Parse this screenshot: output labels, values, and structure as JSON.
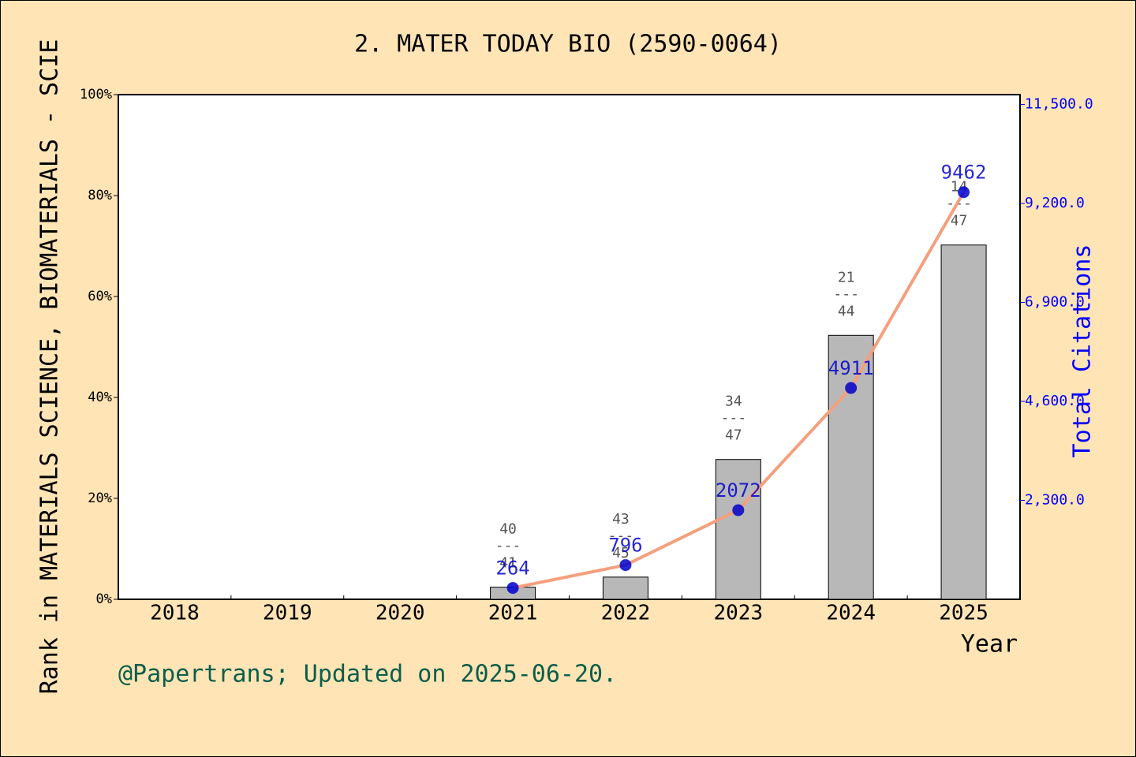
{
  "chart_data": {
    "type": "bar_line",
    "title": "2. MATER TODAY BIO (2590-0064)",
    "xlabel": "Year",
    "ylabel": "Rank in MATERIALS SCIENCE, BIOMATERIALS - SCIE",
    "y2label": "Total Citations",
    "footer": "@Papertrans; Updated on 2025-06-20.",
    "categories": [
      "2018",
      "2019",
      "2020",
      "2021",
      "2022",
      "2023",
      "2024",
      "2025"
    ],
    "series": [
      {
        "type": "bar",
        "color": "#b8b8b8",
        "values": [
          null,
          null,
          null,
          2.4,
          4.4,
          27.7,
          52.3,
          70.2
        ]
      },
      {
        "type": "line",
        "axis": "y2",
        "color": "#f4a07e",
        "marker_color": "#0000cc",
        "values": [
          null,
          null,
          null,
          264,
          796,
          2072,
          4911,
          9462
        ]
      }
    ],
    "rank_labels": [
      null,
      null,
      null,
      {
        "rank": "40",
        "separator": "---",
        "total": "41"
      },
      {
        "rank": "43",
        "separator": "---",
        "total": "45"
      },
      {
        "rank": "34",
        "separator": "---",
        "total": "47"
      },
      {
        "rank": "21",
        "separator": "---",
        "total": "44"
      },
      {
        "rank": "14",
        "separator": "---",
        "total": "47"
      }
    ],
    "ylim": [
      0,
      100
    ],
    "yticks": [
      {
        "value": 0,
        "label": "0%"
      },
      {
        "value": 20,
        "label": "20%"
      },
      {
        "value": 40,
        "label": "40%"
      },
      {
        "value": 60,
        "label": "60%"
      },
      {
        "value": 80,
        "label": "80%"
      },
      {
        "value": 100,
        "label": "100%"
      }
    ],
    "y2lim": [
      0,
      11730
    ],
    "y2ticks": [
      {
        "value": 2300,
        "label": "2,300.0"
      },
      {
        "value": 4600,
        "label": "4,600.0"
      },
      {
        "value": 6900,
        "label": "6,900.0"
      },
      {
        "value": 9200,
        "label": "9,200.0"
      },
      {
        "value": 11500,
        "label": "11,500.0"
      }
    ]
  }
}
